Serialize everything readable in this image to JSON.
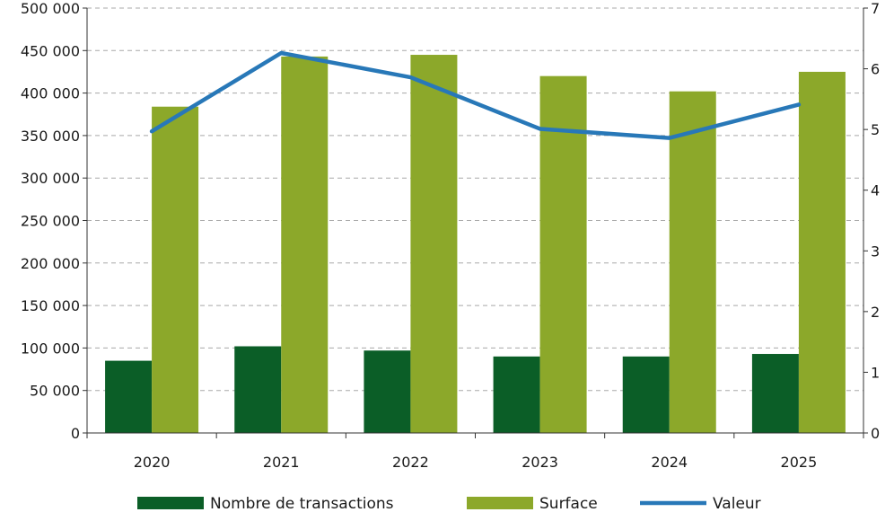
{
  "chart_data": {
    "type": "bar",
    "categories": [
      "2020",
      "2021",
      "2022",
      "2023",
      "2024",
      "2025"
    ],
    "series": [
      {
        "name": "Nombre de transactions",
        "kind": "bar",
        "axis": "left",
        "color": "#0b5e27",
        "values": [
          85000,
          102000,
          97000,
          90000,
          90000,
          93000
        ]
      },
      {
        "name": "Surface",
        "kind": "bar",
        "axis": "left",
        "color": "#8ca82a",
        "values": [
          384000,
          443000,
          445000,
          420000,
          402000,
          425000
        ]
      },
      {
        "name": "Valeur",
        "kind": "line",
        "axis": "right",
        "color": "#2878b8",
        "values": [
          4.97,
          6.26,
          5.86,
          5.01,
          4.86,
          5.41
        ]
      }
    ],
    "y_left": {
      "ylim": [
        0,
        500000
      ],
      "ticks": [
        0,
        50000,
        100000,
        150000,
        200000,
        250000,
        300000,
        350000,
        400000,
        450000,
        500000
      ],
      "tick_labels": [
        "0",
        "50 000",
        "100 000",
        "150 000",
        "200 000",
        "250 000",
        "300 000",
        "350 000",
        "400 000",
        "450 000",
        "500 000"
      ]
    },
    "y_right": {
      "ylim": [
        0,
        7
      ],
      "ticks": [
        0,
        1,
        2,
        3,
        4,
        5,
        6,
        7
      ],
      "tick_labels": [
        "0",
        "1",
        "2",
        "3",
        "4",
        "5",
        "6",
        "7"
      ]
    },
    "grid": "horizontal dashed",
    "legend": "bottom"
  }
}
